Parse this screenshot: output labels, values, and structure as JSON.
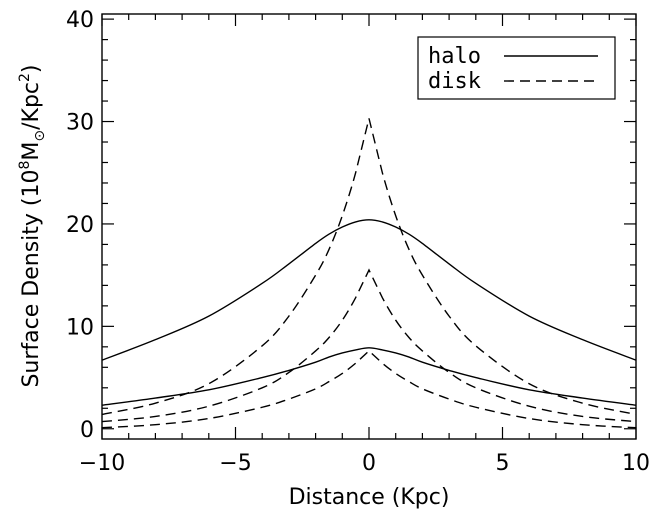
{
  "chart_data": {
    "type": "line",
    "xlabel": "Distance (Kpc)",
    "ylabel": {
      "prefix": "Surface Density (10",
      "exp": "8",
      "mid": "M",
      "sub": "⊙",
      "mid2": "/Kpc",
      "exp2": "2",
      "suffix": ")"
    },
    "xlim": [
      -10,
      10
    ],
    "ylim": [
      -1,
      40.5
    ],
    "xticks": [
      -10,
      -5,
      0,
      5,
      10
    ],
    "xtick_labels": [
      "−10",
      "−5",
      "0",
      "5",
      "10"
    ],
    "yticks": [
      0,
      10,
      20,
      30,
      40
    ],
    "ytick_labels": [
      "0",
      "10",
      "20",
      "30",
      "40"
    ],
    "grid": false,
    "legend_position": "top-right",
    "legend": [
      {
        "label": "halo",
        "style": "solid"
      },
      {
        "label": "disk",
        "style": "dashed"
      }
    ],
    "x": [
      -10,
      -8,
      -6,
      -4,
      -3,
      -2,
      -1.5,
      -1,
      -0.5,
      0,
      0.5,
      1,
      1.5,
      2,
      3,
      4,
      6,
      8,
      10
    ],
    "series": [
      {
        "group": "halo",
        "style": "solid",
        "values": [
          6.7,
          8.7,
          11.0,
          14.2,
          16.1,
          18.1,
          19.0,
          19.7,
          20.2,
          20.4,
          20.2,
          19.7,
          19.0,
          18.1,
          16.1,
          14.2,
          11.0,
          8.7,
          6.7
        ]
      },
      {
        "group": "halo",
        "style": "solid",
        "values": [
          2.3,
          3.0,
          3.8,
          5.0,
          5.7,
          6.5,
          7.0,
          7.4,
          7.7,
          7.9,
          7.7,
          7.4,
          7.0,
          6.5,
          5.7,
          5.0,
          3.8,
          3.0,
          2.3
        ]
      },
      {
        "group": "disk",
        "style": "dashed",
        "values": [
          1.4,
          2.5,
          4.4,
          8.1,
          11.0,
          15.0,
          17.5,
          20.8,
          25.0,
          30.3,
          25.0,
          20.8,
          17.5,
          15.0,
          11.0,
          8.1,
          4.4,
          2.5,
          1.4
        ]
      },
      {
        "group": "disk",
        "style": "dashed",
        "values": [
          0.7,
          1.2,
          2.2,
          4.0,
          5.5,
          7.6,
          8.9,
          10.6,
          12.8,
          15.5,
          12.8,
          10.6,
          8.9,
          7.6,
          5.5,
          4.0,
          2.2,
          1.2,
          0.7
        ]
      },
      {
        "group": "disk",
        "style": "dashed",
        "values": [
          0.1,
          0.4,
          1.0,
          2.1,
          2.9,
          3.9,
          4.6,
          5.4,
          6.4,
          7.6,
          6.4,
          5.4,
          4.6,
          3.9,
          2.9,
          2.1,
          1.0,
          0.4,
          0.1
        ]
      }
    ]
  }
}
